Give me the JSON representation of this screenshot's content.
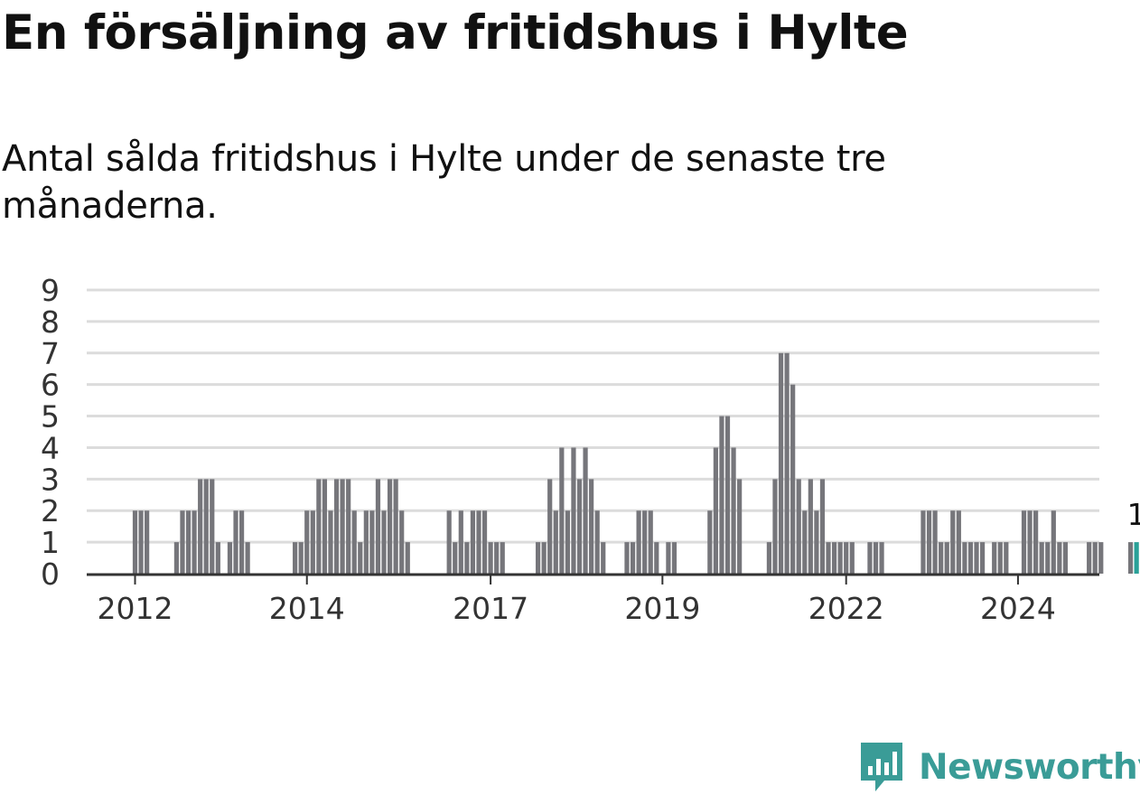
{
  "header": {
    "title": "En försäljning av fritidshus i Hylte",
    "subtitle": "Antal sålda fritidshus i Hylte under de senaste tre månaderna."
  },
  "brand": {
    "name": "Newsworthy",
    "icon": "newsworthy-bar-chart-icon",
    "color": "#3a9c97"
  },
  "chart_data": {
    "type": "bar",
    "title": "",
    "xlabel": "",
    "ylabel": "",
    "ylim": [
      0,
      9
    ],
    "yticks": [
      0,
      1,
      2,
      3,
      4,
      5,
      6,
      7,
      8,
      9
    ],
    "grid": true,
    "x_tick_labels": [
      "2012",
      "2014",
      "2017",
      "2019",
      "2022",
      "2024"
    ],
    "x_tick_months": [
      "2012-01",
      "2014-06",
      "2017-01",
      "2019-06",
      "2022-01",
      "2024-06"
    ],
    "start_month": "2012-01",
    "bar_color": "#76767b",
    "highlight_color": "#2aa198",
    "highlight_label": "1",
    "values": [
      2,
      2,
      2,
      0,
      0,
      0,
      0,
      1,
      2,
      2,
      2,
      3,
      3,
      3,
      1,
      0,
      1,
      2,
      2,
      1,
      0,
      0,
      0,
      0,
      0,
      0,
      0,
      1,
      1,
      2,
      2,
      3,
      3,
      2,
      3,
      3,
      3,
      2,
      1,
      2,
      2,
      3,
      2,
      3,
      3,
      2,
      1,
      0,
      0,
      0,
      0,
      0,
      0,
      2,
      1,
      2,
      1,
      2,
      2,
      2,
      1,
      1,
      1,
      0,
      0,
      0,
      0,
      0,
      1,
      1,
      3,
      2,
      4,
      2,
      4,
      3,
      4,
      3,
      2,
      1,
      0,
      0,
      0,
      1,
      1,
      2,
      2,
      2,
      1,
      0,
      1,
      1,
      0,
      0,
      0,
      0,
      0,
      2,
      4,
      5,
      5,
      4,
      3,
      0,
      0,
      0,
      0,
      1,
      3,
      7,
      7,
      6,
      3,
      2,
      3,
      2,
      3,
      1,
      1,
      1,
      1,
      1,
      0,
      0,
      1,
      1,
      1,
      0,
      0,
      0,
      0,
      0,
      0,
      2,
      2,
      2,
      1,
      1,
      2,
      2,
      1,
      1,
      1,
      1,
      0,
      1,
      1,
      1,
      0,
      0,
      2,
      2,
      2,
      1,
      1,
      2,
      1,
      1,
      0,
      0,
      0,
      1,
      1,
      1,
      0,
      0,
      0,
      0,
      1,
      1
    ]
  }
}
